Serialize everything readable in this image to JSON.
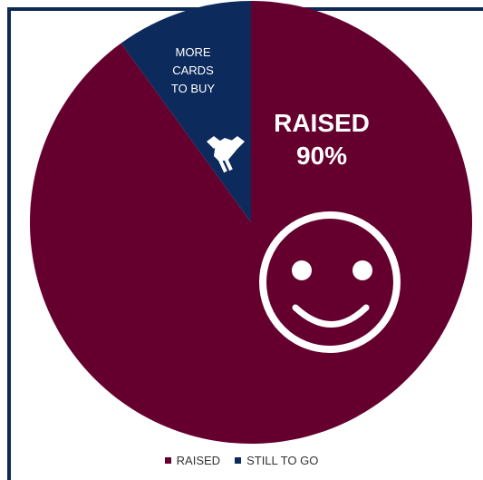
{
  "chart_data": {
    "type": "pie",
    "categories": [
      "RAISED",
      "STILL TO GO"
    ],
    "values": [
      90,
      10
    ],
    "colors": [
      "#65002e",
      "#0d2a5c"
    ],
    "legend_position": "bottom",
    "annotations": {
      "raised_title": "RAISED",
      "raised_value": "90%",
      "still_lines": [
        "MORE",
        "CARDS",
        "TO BUY"
      ]
    },
    "icons": [
      "handshake-icon",
      "smiley-icon"
    ]
  },
  "legend": {
    "items": [
      {
        "label": "RAISED",
        "color": "#65002e"
      },
      {
        "label": "STILL TO GO",
        "color": "#0d2a5c"
      }
    ]
  },
  "frame": {
    "border_color": "#0d2a57"
  }
}
